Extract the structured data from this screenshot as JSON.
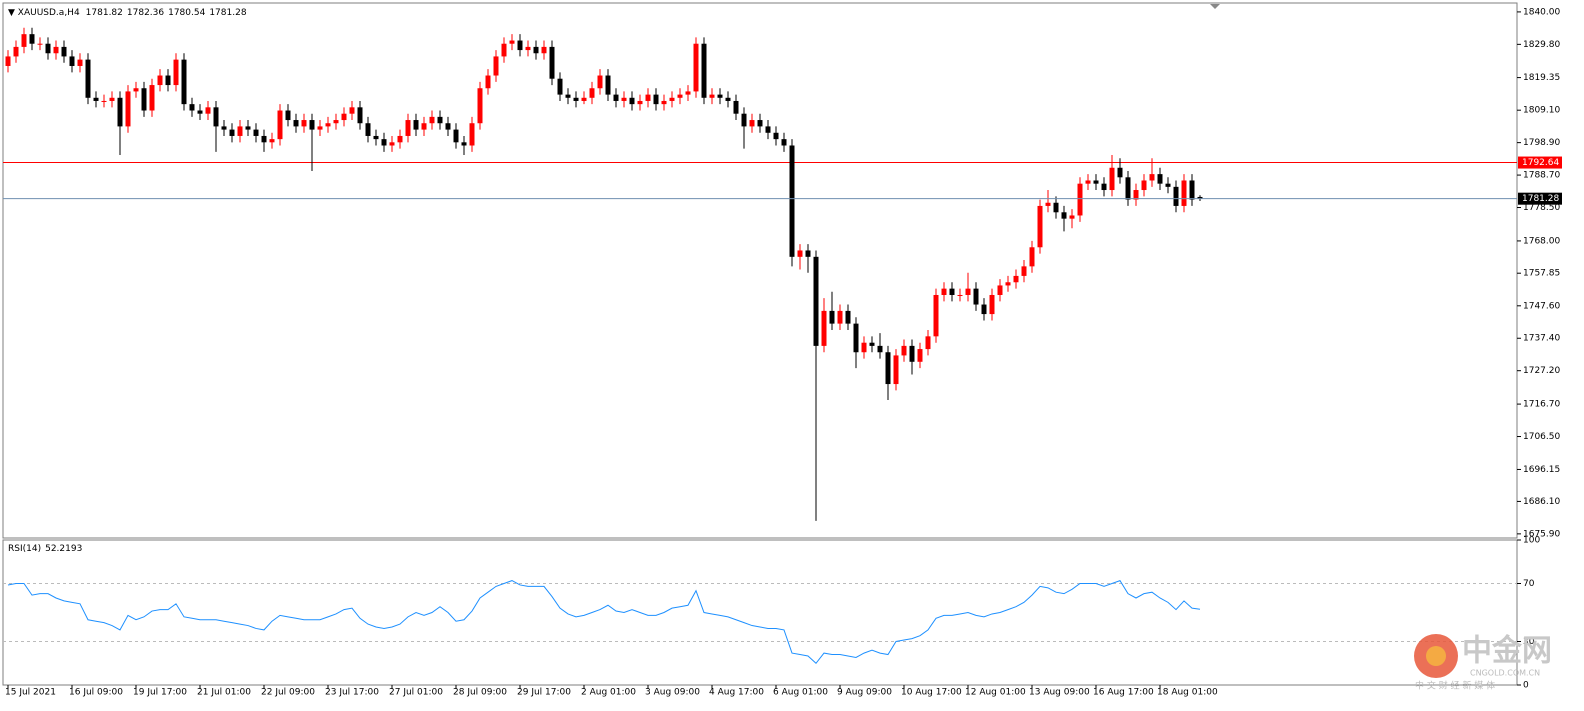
{
  "chart_data": {
    "type": "candlestick",
    "symbol": "XAUUSD.a,H4",
    "up_color": "#ff0000",
    "down_color": "#000000",
    "categories": [
      "15 Jul 2021",
      null,
      null,
      null,
      null,
      null,
      null,
      null,
      "16 Jul 09:00",
      null,
      null,
      null,
      null,
      null,
      null,
      null,
      "19 Jul 17:00",
      null,
      null,
      null,
      null,
      null,
      null,
      null,
      "21 Jul 01:00",
      null,
      null,
      null,
      null,
      null,
      null,
      null,
      "22 Jul 09:00",
      null,
      null,
      null,
      null,
      null,
      null,
      null,
      "23 Jul 17:00",
      null,
      null,
      null,
      null,
      null,
      null,
      null,
      "27 Jul 01:00",
      null,
      null,
      null,
      null,
      null,
      null,
      null,
      "28 Jul 09:00",
      null,
      null,
      null,
      null,
      null,
      null,
      null,
      "29 Jul 17:00",
      null,
      null,
      null,
      null,
      null,
      null,
      null,
      "2 Aug 01:00",
      null,
      null,
      null,
      null,
      null,
      null,
      null,
      "3 Aug 09:00",
      null,
      null,
      null,
      null,
      null,
      null,
      null,
      "4 Aug 17:00",
      null,
      null,
      null,
      null,
      null,
      null,
      null,
      "6 Aug 01:00",
      null,
      null,
      null,
      null,
      null,
      null,
      null,
      "9 Aug 09:00",
      null,
      null,
      null,
      null,
      null,
      null,
      null,
      "10 Aug 17:00",
      null,
      null,
      null,
      null,
      null,
      null,
      null,
      "12 Aug 01:00",
      null,
      null,
      null,
      null,
      null,
      null,
      null,
      "13 Aug 09:00",
      null,
      null,
      null,
      null,
      null,
      null,
      null,
      "16 Aug 17:00",
      null,
      null,
      null,
      null,
      null,
      null,
      null,
      "18 Aug 01:00",
      null,
      null,
      null,
      null,
      null
    ],
    "ohlc": [
      [
        1823,
        1828,
        1821,
        1826
      ],
      [
        1826,
        1831,
        1824,
        1829
      ],
      [
        1829,
        1835,
        1827,
        1833
      ],
      [
        1833,
        1835,
        1828,
        1830
      ],
      [
        1830,
        1832,
        1828,
        1830
      ],
      [
        1830,
        1832,
        1825,
        1827
      ],
      [
        1827,
        1831,
        1825,
        1829
      ],
      [
        1829,
        1831,
        1824,
        1826
      ],
      [
        1826,
        1828,
        1821,
        1823
      ],
      [
        1823,
        1827,
        1821,
        1825
      ],
      [
        1825,
        1827,
        1811,
        1813
      ],
      [
        1813,
        1815,
        1810,
        1812
      ],
      [
        1812,
        1814,
        1810,
        1812
      ],
      [
        1812,
        1815,
        1810,
        1813
      ],
      [
        1813,
        1815,
        1795,
        1804
      ],
      [
        1804,
        1817,
        1802,
        1815
      ],
      [
        1815,
        1818,
        1813,
        1816
      ],
      [
        1816,
        1818,
        1807,
        1809
      ],
      [
        1809,
        1819,
        1807,
        1817
      ],
      [
        1817,
        1822,
        1815,
        1820
      ],
      [
        1820,
        1822,
        1815,
        1817
      ],
      [
        1817,
        1827,
        1815,
        1825
      ],
      [
        1825,
        1827,
        1809,
        1811
      ],
      [
        1811,
        1813,
        1807,
        1809
      ],
      [
        1809,
        1811,
        1806,
        1808
      ],
      [
        1808,
        1812,
        1806,
        1810
      ],
      [
        1810,
        1812,
        1796,
        1804
      ],
      [
        1804,
        1806,
        1801,
        1803
      ],
      [
        1803,
        1805,
        1799,
        1801
      ],
      [
        1801,
        1806,
        1799,
        1804
      ],
      [
        1804,
        1806,
        1801,
        1803
      ],
      [
        1803,
        1805,
        1799,
        1801
      ],
      [
        1801,
        1803,
        1796,
        1799
      ],
      [
        1799,
        1802,
        1797,
        1800
      ],
      [
        1800,
        1811,
        1798,
        1809
      ],
      [
        1809,
        1811,
        1804,
        1806
      ],
      [
        1806,
        1808,
        1802,
        1804
      ],
      [
        1804,
        1808,
        1802,
        1806
      ],
      [
        1806,
        1808,
        1790,
        1803
      ],
      [
        1803,
        1806,
        1801,
        1804
      ],
      [
        1804,
        1807,
        1802,
        1805
      ],
      [
        1805,
        1808,
        1803,
        1806
      ],
      [
        1806,
        1810,
        1804,
        1808
      ],
      [
        1808,
        1812,
        1806,
        1810
      ],
      [
        1810,
        1812,
        1803,
        1805
      ],
      [
        1805,
        1807,
        1799,
        1801
      ],
      [
        1801,
        1803,
        1798,
        1800
      ],
      [
        1800,
        1802,
        1796,
        1798
      ],
      [
        1798,
        1801,
        1796,
        1799
      ],
      [
        1799,
        1803,
        1797,
        1801
      ],
      [
        1801,
        1808,
        1799,
        1806
      ],
      [
        1806,
        1808,
        1801,
        1803
      ],
      [
        1803,
        1807,
        1801,
        1805
      ],
      [
        1805,
        1809,
        1803,
        1807
      ],
      [
        1807,
        1809,
        1803,
        1805
      ],
      [
        1805,
        1807,
        1801,
        1803
      ],
      [
        1803,
        1805,
        1797,
        1799
      ],
      [
        1799,
        1801,
        1795,
        1798
      ],
      [
        1798,
        1807,
        1796,
        1805
      ],
      [
        1805,
        1818,
        1803,
        1816
      ],
      [
        1816,
        1822,
        1814,
        1820
      ],
      [
        1820,
        1828,
        1818,
        1826
      ],
      [
        1826,
        1832,
        1824,
        1830
      ],
      [
        1830,
        1833,
        1828,
        1831
      ],
      [
        1831,
        1833,
        1826,
        1828
      ],
      [
        1828,
        1831,
        1826,
        1829
      ],
      [
        1829,
        1831,
        1825,
        1827
      ],
      [
        1827,
        1831,
        1825,
        1829
      ],
      [
        1829,
        1831,
        1817,
        1819
      ],
      [
        1819,
        1821,
        1812,
        1814
      ],
      [
        1814,
        1816,
        1811,
        1813
      ],
      [
        1813,
        1815,
        1810,
        1812
      ],
      [
        1812,
        1815,
        1811,
        1813
      ],
      [
        1813,
        1818,
        1811,
        1816
      ],
      [
        1816,
        1822,
        1814,
        1820
      ],
      [
        1820,
        1822,
        1812,
        1814
      ],
      [
        1814,
        1816,
        1810,
        1812
      ],
      [
        1812,
        1815,
        1810,
        1813
      ],
      [
        1813,
        1815,
        1809,
        1811
      ],
      [
        1811,
        1814,
        1809,
        1812
      ],
      [
        1812,
        1816,
        1810,
        1814
      ],
      [
        1814,
        1816,
        1809,
        1811
      ],
      [
        1811,
        1814,
        1809,
        1812
      ],
      [
        1812,
        1815,
        1810,
        1813
      ],
      [
        1813,
        1816,
        1811,
        1814
      ],
      [
        1814,
        1817,
        1812,
        1815
      ],
      [
        1815,
        1832,
        1813,
        1830
      ],
      [
        1830,
        1832,
        1811,
        1813
      ],
      [
        1813,
        1816,
        1811,
        1814
      ],
      [
        1814,
        1816,
        1811,
        1813
      ],
      [
        1813,
        1815,
        1810,
        1812
      ],
      [
        1812,
        1814,
        1806,
        1808
      ],
      [
        1808,
        1810,
        1797,
        1804
      ],
      [
        1804,
        1808,
        1802,
        1806
      ],
      [
        1806,
        1808,
        1802,
        1804
      ],
      [
        1804,
        1806,
        1800,
        1802
      ],
      [
        1802,
        1804,
        1798,
        1800
      ],
      [
        1800,
        1802,
        1796,
        1798
      ],
      [
        1798,
        1800,
        1760,
        1763
      ],
      [
        1763,
        1767,
        1759,
        1765
      ],
      [
        1765,
        1767,
        1758,
        1763
      ],
      [
        1763,
        1765,
        1680,
        1735
      ],
      [
        1735,
        1750,
        1733,
        1746
      ],
      [
        1746,
        1752,
        1740,
        1742
      ],
      [
        1742,
        1748,
        1740,
        1746
      ],
      [
        1746,
        1748,
        1740,
        1742
      ],
      [
        1742,
        1744,
        1728,
        1733
      ],
      [
        1733,
        1738,
        1731,
        1736
      ],
      [
        1736,
        1738,
        1733,
        1735
      ],
      [
        1735,
        1739,
        1731,
        1733
      ],
      [
        1733,
        1735,
        1718,
        1723
      ],
      [
        1723,
        1734,
        1721,
        1732
      ],
      [
        1732,
        1737,
        1730,
        1735
      ],
      [
        1735,
        1737,
        1726,
        1730
      ],
      [
        1730,
        1736,
        1728,
        1734
      ],
      [
        1734,
        1740,
        1732,
        1738
      ],
      [
        1738,
        1753,
        1736,
        1751
      ],
      [
        1751,
        1755,
        1749,
        1753
      ],
      [
        1753,
        1755,
        1749,
        1751
      ],
      [
        1751,
        1753,
        1749,
        1751
      ],
      [
        1751,
        1758,
        1749,
        1753
      ],
      [
        1753,
        1755,
        1746,
        1748
      ],
      [
        1748,
        1750,
        1743,
        1745
      ],
      [
        1745,
        1753,
        1743,
        1751
      ],
      [
        1751,
        1756,
        1749,
        1754
      ],
      [
        1754,
        1757,
        1752,
        1755
      ],
      [
        1755,
        1759,
        1753,
        1757
      ],
      [
        1757,
        1762,
        1755,
        1760
      ],
      [
        1760,
        1768,
        1758,
        1766
      ],
      [
        1766,
        1781,
        1764,
        1779
      ],
      [
        1779,
        1784,
        1777,
        1780
      ],
      [
        1780,
        1782,
        1775,
        1777
      ],
      [
        1777,
        1779,
        1771,
        1775
      ],
      [
        1775,
        1778,
        1772,
        1776
      ],
      [
        1776,
        1788,
        1774,
        1786
      ],
      [
        1786,
        1789,
        1784,
        1787
      ],
      [
        1787,
        1789,
        1784,
        1786
      ],
      [
        1786,
        1788,
        1782,
        1784
      ],
      [
        1784,
        1795,
        1782,
        1791
      ],
      [
        1791,
        1794,
        1786,
        1788
      ],
      [
        1788,
        1790,
        1779,
        1781
      ],
      [
        1781,
        1786,
        1779,
        1784
      ],
      [
        1784,
        1789,
        1782,
        1787
      ],
      [
        1787,
        1794,
        1785,
        1789
      ],
      [
        1789,
        1791,
        1784,
        1786
      ],
      [
        1786,
        1788,
        1783,
        1785
      ],
      [
        1785,
        1787,
        1777,
        1779
      ],
      [
        1779,
        1789,
        1777,
        1787
      ],
      [
        1787,
        1789,
        1779,
        1781
      ],
      [
        1781.82,
        1782.36,
        1780.54,
        1781.28
      ]
    ],
    "ylim": [
      1674.6,
      1842.8
    ],
    "yticks": [
      {
        "value": 1840,
        "label": "1840.00"
      },
      {
        "value": 1829.8,
        "label": "1829.80"
      },
      {
        "value": 1819.35,
        "label": "1819.35"
      },
      {
        "value": 1809.1,
        "label": "1809.10"
      },
      {
        "value": 1798.9,
        "label": "1798.90"
      },
      {
        "value": 1788.7,
        "label": "1788.70"
      },
      {
        "value": 1778.5,
        "label": "1778.50"
      },
      {
        "value": 1768,
        "label": "1768.00"
      },
      {
        "value": 1757.85,
        "label": "1757.85"
      },
      {
        "value": 1747.6,
        "label": "1747.60"
      },
      {
        "value": 1737.4,
        "label": "1737.40"
      },
      {
        "value": 1727.2,
        "label": "1727.20"
      },
      {
        "value": 1716.7,
        "label": "1716.70"
      },
      {
        "value": 1706.5,
        "label": "1706.50"
      },
      {
        "value": 1696.15,
        "label": "1696.15"
      },
      {
        "value": 1686.1,
        "label": "1686.10"
      },
      {
        "value": 1675.9,
        "label": "1675.90"
      }
    ],
    "levels": [
      {
        "value": 1792.64,
        "color": "#ff0000"
      }
    ],
    "current_line_color": "#6f8fb0",
    "indicator": {
      "type": "line",
      "name": "RSI(14)",
      "color": "#1e90ff",
      "values": [
        69,
        70,
        70,
        62,
        63,
        63,
        60,
        58,
        57,
        56,
        45,
        44,
        43,
        41,
        38,
        48,
        45,
        47,
        51,
        52,
        52,
        56,
        47,
        46,
        45,
        45,
        45,
        44,
        43,
        42,
        41,
        39,
        38,
        44,
        48,
        47,
        46,
        45,
        45,
        45,
        47,
        49,
        52,
        53,
        46,
        42,
        40,
        39,
        40,
        42,
        47,
        50,
        48,
        50,
        54,
        50,
        44,
        45,
        51,
        60,
        64,
        68,
        70,
        72,
        69,
        68,
        68,
        68,
        61,
        53,
        49,
        47,
        48,
        50,
        52,
        55,
        51,
        50,
        52,
        50,
        48,
        48,
        50,
        53,
        54,
        55,
        65,
        50,
        49,
        48,
        47,
        45,
        43,
        41,
        40,
        39,
        39,
        38,
        22,
        21,
        20,
        15,
        22,
        21,
        21,
        20,
        19,
        22,
        24,
        22,
        21,
        30,
        31,
        32,
        34,
        38,
        46,
        48,
        48,
        49,
        50,
        48,
        47,
        49,
        50,
        52,
        54,
        57,
        62,
        68,
        67,
        64,
        63,
        66,
        70,
        70,
        70,
        68,
        70,
        72,
        63,
        60,
        63,
        64,
        60,
        57,
        52,
        58,
        53,
        52.2193
      ],
      "ylim": [
        0,
        100
      ],
      "yticks": [
        100,
        70,
        30,
        0
      ],
      "levels": [
        70,
        30
      ]
    }
  },
  "watermark": {
    "brand": "中金网",
    "domain": "CNGOLD.COM.CN",
    "slogan": "中 文 财 经 新 媒 体"
  }
}
